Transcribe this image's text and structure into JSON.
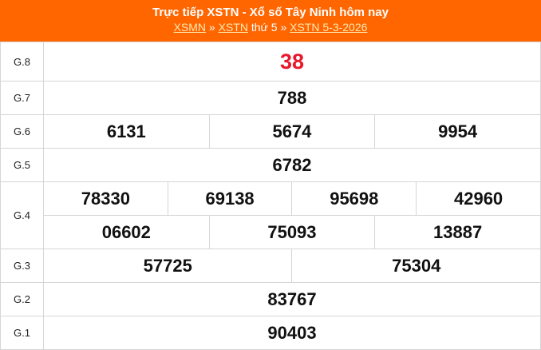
{
  "header": {
    "title": "Trực tiếp XSTN - Xổ số Tây Ninh hôm nay",
    "crumb1": "XSMN",
    "sep1": " » ",
    "crumb2": "XSTN",
    "text2": " thứ 5 » ",
    "crumb3": "XSTN 5-3-2026",
    "accent": "#ff6600",
    "highlight": "#e8192c"
  },
  "prizes": {
    "g8": {
      "label": "G.8",
      "nums": [
        "38"
      ]
    },
    "g7": {
      "label": "G.7",
      "nums": [
        "788"
      ]
    },
    "g6": {
      "label": "G.6",
      "nums": [
        "6131",
        "5674",
        "9954"
      ]
    },
    "g5": {
      "label": "G.5",
      "nums": [
        "6782"
      ]
    },
    "g4": {
      "label": "G.4",
      "nums": [
        "78330",
        "69138",
        "95698",
        "42960",
        "06602",
        "75093",
        "13887"
      ]
    },
    "g3": {
      "label": "G.3",
      "nums": [
        "57725",
        "75304"
      ]
    },
    "g2": {
      "label": "G.2",
      "nums": [
        "83767"
      ]
    },
    "g1": {
      "label": "G.1",
      "nums": [
        "90403"
      ]
    }
  }
}
